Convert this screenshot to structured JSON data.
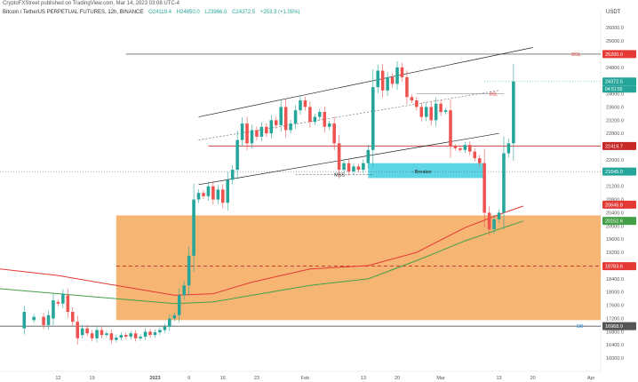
{
  "header": {
    "published": "CryptoFXStreet published on TradingView.com, Mar 14, 2023 03:08 UTC-4",
    "symbol": "Bitcoin / TetherUS PERPETUAL FUTURES, 12h, BINANCE",
    "open": "O24119.4",
    "high": "H24850.0",
    "low": "L23966.0",
    "close": "C24372.5",
    "change": "+253.3 (+1.05%)"
  },
  "chart_data": {
    "type": "candlestick",
    "currency": "USDT",
    "ylim": [
      15600,
      26300
    ],
    "y_ticks": [
      16000,
      16400,
      16800,
      17200,
      17600,
      18000,
      18400,
      18800,
      19200,
      19600,
      20000,
      20400,
      20800,
      21200,
      21600,
      22000,
      22400,
      22800,
      23200,
      23600,
      24000,
      24400,
      24800,
      25200,
      25600,
      26000
    ],
    "x_ticks": [
      {
        "label": "12",
        "day": 12
      },
      {
        "label": "19",
        "day": 19
      },
      {
        "label": "2023",
        "day": 32
      },
      {
        "label": "9",
        "day": 39
      },
      {
        "label": "16",
        "day": 46
      },
      {
        "label": "23",
        "day": 53
      },
      {
        "label": "Feb",
        "day": 63
      },
      {
        "label": "13",
        "day": 75
      },
      {
        "label": "20",
        "day": 82
      },
      {
        "label": "Mar",
        "day": 91
      },
      {
        "label": "13",
        "day": 103
      },
      {
        "label": "20",
        "day": 110
      },
      {
        "label": "Apr",
        "day": 122
      }
    ],
    "price_levels": [
      {
        "name": "BSL",
        "value": 25200.0,
        "label": "25200.0",
        "color": "#e53935"
      },
      {
        "name": "last",
        "value": 24372.5,
        "label": "24372.5",
        "sublabel": "04:51:55",
        "color": "#26a69a"
      },
      {
        "name": "resistance",
        "value": 22419.7,
        "label": "22419.7",
        "color": "#c62828"
      },
      {
        "name": "breaker-level",
        "value": 21645.0,
        "label": "21645.0",
        "color": "#26a69a"
      },
      {
        "name": "ma-red-value",
        "value": 20645.8,
        "label": "20645.8",
        "color": "#e53935"
      },
      {
        "name": "ma-green-value",
        "value": 20152.6,
        "label": "20152.6",
        "color": "#43a047"
      },
      {
        "name": "zone-mid",
        "value": 18783.6,
        "label": "18783.6",
        "color": "#e53935"
      },
      {
        "name": "OB",
        "value": 16968.0,
        "label": "16968.0",
        "color": "#555555"
      }
    ],
    "annotations": [
      {
        "text": "BSL",
        "value": 25200
      },
      {
        "text": "BSL",
        "value": 24000
      },
      {
        "text": "MSS",
        "value": 21550
      },
      {
        "text": "- Breaker",
        "value": 21650
      },
      {
        "text": "OB",
        "value": 16968
      }
    ],
    "orange_zone": {
      "day_start": 24,
      "day_end": 124,
      "top": 20320,
      "bottom": 17150,
      "color": "#f5a85a"
    },
    "breaker_zone": {
      "day_start": 76,
      "day_end": 100,
      "top": 21900,
      "bottom": 21450,
      "color": "#4dd0e1"
    },
    "candles": [
      [
        5,
        16900,
        17400
      ],
      [
        7,
        17150,
        17250
      ],
      [
        9,
        17250,
        17000
      ],
      [
        10,
        17000,
        17300
      ],
      [
        11,
        17200,
        17750
      ],
      [
        12,
        17700,
        17650
      ],
      [
        13,
        17650,
        17950
      ],
      [
        14,
        17900,
        17400
      ],
      [
        15,
        17400,
        17100
      ],
      [
        16,
        17100,
        16600
      ],
      [
        17,
        16700,
        16900
      ],
      [
        18,
        16900,
        16750
      ],
      [
        19,
        16750,
        16600
      ],
      [
        20,
        16600,
        16850
      ],
      [
        21,
        16850,
        16700
      ],
      [
        22,
        16700,
        16750
      ],
      [
        23,
        16750,
        16550
      ],
      [
        24,
        16550,
        16620
      ],
      [
        25,
        16620,
        16700
      ],
      [
        26,
        16700,
        16650
      ],
      [
        27,
        16650,
        16750
      ],
      [
        28,
        16750,
        16600
      ],
      [
        29,
        16600,
        16650
      ],
      [
        30,
        16650,
        16800
      ],
      [
        31,
        16800,
        16700
      ],
      [
        32,
        16700,
        16780
      ],
      [
        33,
        16780,
        16850
      ],
      [
        34,
        16850,
        16950
      ],
      [
        35,
        16950,
        17200
      ],
      [
        36,
        17200,
        17300
      ],
      [
        37,
        17300,
        17900
      ],
      [
        38,
        17900,
        18200
      ],
      [
        39,
        18200,
        19100
      ],
      [
        40,
        19100,
        20800
      ],
      [
        41,
        20800,
        21000
      ],
      [
        42,
        21000,
        20900
      ],
      [
        43,
        20900,
        21200
      ],
      [
        44,
        21200,
        20800
      ],
      [
        45,
        20800,
        21100
      ],
      [
        46,
        21100,
        20700
      ],
      [
        47,
        20700,
        21400
      ],
      [
        48,
        21400,
        21700
      ],
      [
        49,
        21700,
        22600
      ],
      [
        50,
        22600,
        23100
      ],
      [
        51,
        23100,
        22500
      ],
      [
        52,
        22500,
        22900
      ],
      [
        53,
        22900,
        22700
      ],
      [
        54,
        22700,
        23000
      ],
      [
        55,
        23000,
        22800
      ],
      [
        56,
        22800,
        23200
      ],
      [
        57,
        23200,
        23050
      ],
      [
        58,
        23050,
        23600
      ],
      [
        59,
        23600,
        22900
      ],
      [
        60,
        22900,
        23100
      ],
      [
        61,
        23100,
        23500
      ],
      [
        62,
        23500,
        23800
      ],
      [
        63,
        23800,
        23600
      ],
      [
        64,
        23600,
        23150
      ],
      [
        65,
        23150,
        23300
      ],
      [
        66,
        23300,
        23450
      ],
      [
        67,
        23450,
        23000
      ],
      [
        68,
        23000,
        23100
      ],
      [
        69,
        23100,
        22500
      ],
      [
        70,
        22500,
        21700
      ],
      [
        71,
        21700,
        21900
      ],
      [
        72,
        21900,
        21650
      ],
      [
        73,
        21650,
        21800
      ],
      [
        74,
        21800,
        21700
      ],
      [
        75,
        21700,
        21900
      ],
      [
        76,
        21900,
        22300
      ],
      [
        77,
        22300,
        24200
      ],
      [
        78,
        24200,
        24700
      ],
      [
        79,
        24700,
        24100
      ],
      [
        80,
        24100,
        24500
      ],
      [
        81,
        24500,
        24300
      ],
      [
        82,
        24300,
        24800
      ],
      [
        83,
        24800,
        24500
      ],
      [
        84,
        24500,
        23900
      ],
      [
        85,
        23900,
        23800
      ],
      [
        86,
        23800,
        23600
      ],
      [
        87,
        23600,
        23300
      ],
      [
        88,
        23300,
        23600
      ],
      [
        89,
        23600,
        23200
      ],
      [
        90,
        23200,
        23700
      ],
      [
        91,
        23700,
        23450
      ],
      [
        92,
        23450,
        23500
      ],
      [
        93,
        23500,
        22400
      ],
      [
        94,
        22400,
        22350
      ],
      [
        95,
        22350,
        22300
      ],
      [
        96,
        22300,
        22450
      ],
      [
        97,
        22450,
        22250
      ],
      [
        98,
        22250,
        22050
      ],
      [
        99,
        22050,
        21900
      ],
      [
        100,
        21900,
        20400
      ],
      [
        101,
        20400,
        19900
      ],
      [
        102,
        19900,
        20200
      ],
      [
        103,
        20200,
        20400
      ],
      [
        104,
        20400,
        22200
      ],
      [
        105,
        22200,
        22500
      ],
      [
        106,
        22500,
        24372.5
      ]
    ],
    "series": [
      {
        "name": "",
        "color": "#e53935",
        "points": [
          [
            0,
            18700
          ],
          [
            12,
            18500
          ],
          [
            24,
            18200
          ],
          [
            36,
            17900
          ],
          [
            44,
            17950
          ],
          [
            52,
            18300
          ],
          [
            64,
            18700
          ],
          [
            76,
            18800
          ],
          [
            86,
            19200
          ],
          [
            96,
            19950
          ],
          [
            104,
            20400
          ],
          [
            108,
            20600
          ]
        ]
      },
      {
        "name": "",
        "color": "#43a047",
        "points": [
          [
            0,
            18100
          ],
          [
            12,
            17950
          ],
          [
            24,
            17800
          ],
          [
            36,
            17650
          ],
          [
            44,
            17700
          ],
          [
            52,
            17900
          ],
          [
            64,
            18200
          ],
          [
            76,
            18400
          ],
          [
            86,
            18950
          ],
          [
            96,
            19550
          ],
          [
            104,
            19950
          ],
          [
            108,
            20150
          ]
        ]
      }
    ],
    "trend_lines": [
      {
        "color": "#222222",
        "points": [
          [
            41,
            23300
          ],
          [
            110,
            25400
          ]
        ]
      },
      {
        "color": "#222222",
        "points": [
          [
            41,
            21250
          ],
          [
            103,
            22800
          ]
        ]
      },
      {
        "color": "#777777",
        "dashed": true,
        "points": [
          [
            41,
            22600
          ],
          [
            103,
            24100
          ]
        ]
      }
    ],
    "mss_segment": [
      [
        61,
        21550
      ],
      [
        77,
        21550
      ]
    ],
    "bsl_segment": [
      [
        86,
        24000
      ],
      [
        104,
        24000
      ]
    ],
    "resistance_segment": [
      [
        43,
        22419.7
      ],
      [
        124,
        22419.7
      ]
    ],
    "ob_segment": [
      [
        0,
        16968
      ],
      [
        124,
        16968
      ]
    ],
    "bsl_line": [
      [
        26,
        25200
      ],
      [
        124,
        25200
      ]
    ]
  }
}
